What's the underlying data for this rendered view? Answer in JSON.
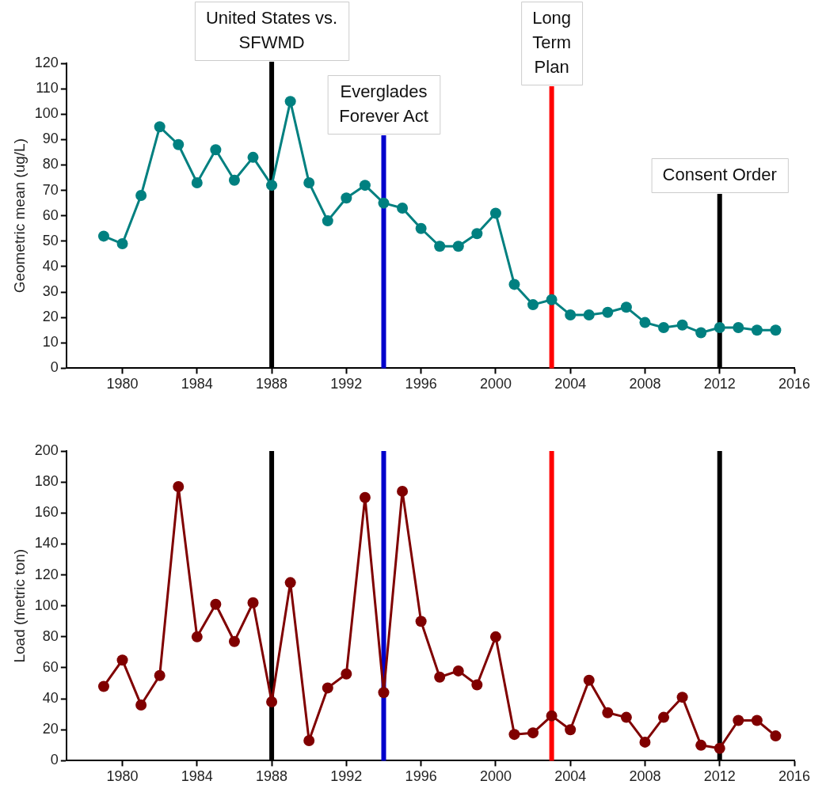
{
  "chart_data": [
    {
      "type": "line",
      "ylabel": "Geometric mean (ug/L)",
      "x": [
        1979,
        1980,
        1981,
        1982,
        1983,
        1984,
        1985,
        1986,
        1987,
        1988,
        1989,
        1990,
        1991,
        1992,
        1993,
        1994,
        1995,
        1996,
        1997,
        1998,
        1999,
        2000,
        2001,
        2002,
        2003,
        2004,
        2005,
        2006,
        2007,
        2008,
        2009,
        2010,
        2011,
        2012,
        2013,
        2014,
        2015
      ],
      "series": [
        {
          "color": "#008080",
          "values": [
            52,
            49,
            68,
            95,
            88,
            73,
            86,
            74,
            83,
            72,
            105,
            73,
            58,
            67,
            72,
            65,
            63,
            55,
            48,
            48,
            53,
            61,
            33,
            25,
            27,
            21,
            21,
            22,
            24,
            18,
            16,
            17,
            14,
            16,
            16,
            15,
            15
          ]
        }
      ],
      "xlim": [
        1977,
        2016
      ],
      "xticks": [
        1980,
        1984,
        1988,
        1992,
        1996,
        2000,
        2004,
        2008,
        2012,
        2016
      ],
      "ylim": [
        0,
        120
      ],
      "yticks": [
        0,
        10,
        20,
        30,
        40,
        50,
        60,
        70,
        80,
        90,
        100,
        110,
        120
      ],
      "marker": "circle",
      "grid": false,
      "legend": false,
      "ref_lines": [
        {
          "axis": "x",
          "value": 1988,
          "label": "United States vs. SFWMD",
          "color": "#000000"
        },
        {
          "axis": "x",
          "value": 1994,
          "label": "Everglades Forever Act",
          "color": "#0000cc"
        },
        {
          "axis": "x",
          "value": 2003,
          "label": "Long Term Plan",
          "color": "#ff0000"
        },
        {
          "axis": "x",
          "value": 2012,
          "label": "Consent Order",
          "color": "#000000"
        }
      ]
    },
    {
      "type": "line",
      "ylabel": "Load (metric ton)",
      "x": [
        1979,
        1980,
        1981,
        1982,
        1983,
        1984,
        1985,
        1986,
        1987,
        1988,
        1989,
        1990,
        1991,
        1992,
        1993,
        1994,
        1995,
        1996,
        1997,
        1998,
        1999,
        2000,
        2001,
        2002,
        2003,
        2004,
        2005,
        2006,
        2007,
        2008,
        2009,
        2010,
        2011,
        2012,
        2013,
        2014,
        2015
      ],
      "series": [
        {
          "color": "#800000",
          "values": [
            48,
            65,
            36,
            55,
            177,
            80,
            101,
            77,
            102,
            38,
            115,
            13,
            47,
            56,
            170,
            44,
            174,
            90,
            54,
            58,
            49,
            80,
            17,
            18,
            29,
            20,
            52,
            31,
            28,
            12,
            28,
            41,
            10,
            8,
            26,
            26,
            16
          ]
        }
      ],
      "xlim": [
        1977,
        2016
      ],
      "xticks": [
        1980,
        1984,
        1988,
        1992,
        1996,
        2000,
        2004,
        2008,
        2012,
        2016
      ],
      "ylim": [
        0,
        200
      ],
      "yticks": [
        0,
        20,
        40,
        60,
        80,
        100,
        120,
        140,
        160,
        180,
        200
      ],
      "marker": "circle",
      "grid": false,
      "legend": false,
      "ref_lines": [
        {
          "axis": "x",
          "value": 1988,
          "color": "#000000"
        },
        {
          "axis": "x",
          "value": 1994,
          "color": "#0000cc"
        },
        {
          "axis": "x",
          "value": 2003,
          "color": "#ff0000"
        },
        {
          "axis": "x",
          "value": 2012,
          "color": "#000000"
        }
      ]
    }
  ]
}
